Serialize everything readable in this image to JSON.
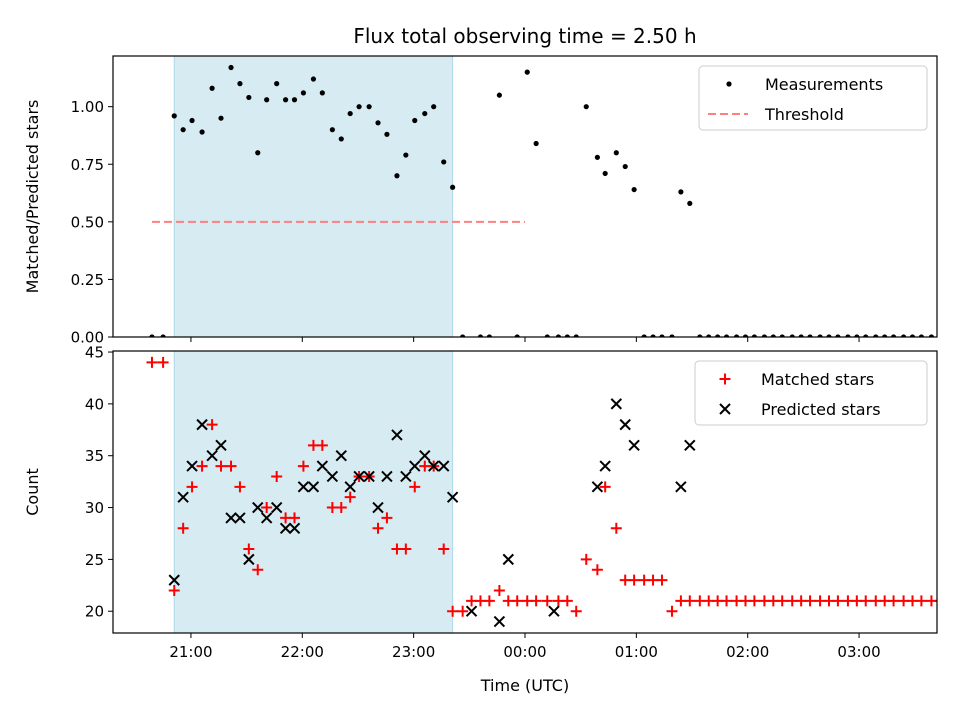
{
  "figure": {
    "title": "Flux total observing time = 2.50 h"
  },
  "chart_data": [
    {
      "type": "scatter",
      "ylabel": "Matched/Predicted stars",
      "xlabel": "",
      "ylim": [
        0,
        1.22
      ],
      "yticks": [
        "0.00",
        "0.25",
        "0.50",
        "0.75",
        "1.00"
      ],
      "ytick_values": [
        0,
        0.25,
        0.5,
        0.75,
        1.0
      ],
      "highlight_span": [
        20.85,
        23.35
      ],
      "highlight_color": "#add8e6",
      "legend_position": "upper right",
      "legend": [
        {
          "label": "Measurements",
          "marker": "dot",
          "color": "#000000"
        },
        {
          "label": "Threshold",
          "marker": "dashed-line",
          "color": "#ff7f7f"
        }
      ],
      "threshold": {
        "value": 0.5,
        "x_range": [
          20.65,
          24.0
        ]
      },
      "series": [
        {
          "name": "Measurements",
          "color": "#000000",
          "points": [
            [
              20.65,
              0
            ],
            [
              20.75,
              0
            ],
            [
              20.85,
              0.96
            ],
            [
              20.93,
              0.9
            ],
            [
              21.01,
              0.94
            ],
            [
              21.1,
              0.89
            ],
            [
              21.19,
              1.08
            ],
            [
              21.27,
              0.95
            ],
            [
              21.36,
              1.17
            ],
            [
              21.44,
              1.1
            ],
            [
              21.52,
              1.04
            ],
            [
              21.6,
              0.8
            ],
            [
              21.68,
              1.03
            ],
            [
              21.77,
              1.1
            ],
            [
              21.85,
              1.03
            ],
            [
              21.93,
              1.03
            ],
            [
              22.01,
              1.06
            ],
            [
              22.1,
              1.12
            ],
            [
              22.18,
              1.06
            ],
            [
              22.27,
              0.9
            ],
            [
              22.35,
              0.86
            ],
            [
              22.43,
              0.97
            ],
            [
              22.51,
              1.0
            ],
            [
              22.6,
              1.0
            ],
            [
              22.68,
              0.93
            ],
            [
              22.76,
              0.88
            ],
            [
              22.85,
              0.7
            ],
            [
              22.93,
              0.79
            ],
            [
              23.01,
              0.94
            ],
            [
              23.1,
              0.97
            ],
            [
              23.18,
              1.0
            ],
            [
              23.27,
              0.76
            ],
            [
              23.35,
              0.65
            ],
            [
              23.44,
              0
            ],
            [
              23.6,
              0
            ],
            [
              23.68,
              0
            ],
            [
              23.77,
              1.05
            ],
            [
              23.93,
              0
            ],
            [
              24.02,
              1.15
            ],
            [
              24.1,
              0.84
            ],
            [
              24.2,
              0
            ],
            [
              24.3,
              0
            ],
            [
              24.38,
              0
            ],
            [
              24.46,
              0
            ],
            [
              24.55,
              1.0
            ],
            [
              24.65,
              0.78
            ],
            [
              24.72,
              0.71
            ],
            [
              24.82,
              0.8
            ],
            [
              24.9,
              0.74
            ],
            [
              24.98,
              0.64
            ],
            [
              25.07,
              0
            ],
            [
              25.15,
              0
            ],
            [
              25.23,
              0
            ],
            [
              25.32,
              0
            ],
            [
              25.4,
              0.63
            ],
            [
              25.48,
              0.58
            ],
            [
              25.57,
              0
            ],
            [
              25.65,
              0
            ],
            [
              25.73,
              0
            ],
            [
              25.81,
              0
            ],
            [
              25.9,
              0
            ],
            [
              25.98,
              0
            ],
            [
              26.06,
              0
            ],
            [
              26.15,
              0
            ],
            [
              26.23,
              0
            ],
            [
              26.31,
              0
            ],
            [
              26.4,
              0
            ],
            [
              26.48,
              0
            ],
            [
              26.56,
              0
            ],
            [
              26.65,
              0
            ],
            [
              26.73,
              0
            ],
            [
              26.81,
              0
            ],
            [
              26.9,
              0
            ],
            [
              26.98,
              0
            ],
            [
              27.06,
              0
            ],
            [
              27.15,
              0
            ],
            [
              27.23,
              0
            ],
            [
              27.31,
              0
            ],
            [
              27.4,
              0
            ],
            [
              27.48,
              0
            ],
            [
              27.56,
              0
            ],
            [
              27.65,
              0
            ],
            [
              27.73,
              0
            ],
            [
              27.81,
              0
            ]
          ]
        }
      ]
    },
    {
      "type": "scatter",
      "ylabel": "Count",
      "xlabel": "Time (UTC)",
      "ylim": [
        17.9,
        45.1
      ],
      "yticks": [
        "20",
        "25",
        "30",
        "35",
        "40",
        "45"
      ],
      "ytick_values": [
        20,
        25,
        30,
        35,
        40,
        45
      ],
      "xlim": [
        20.3,
        27.7
      ],
      "xticks": [
        "21:00",
        "22:00",
        "23:00",
        "00:00",
        "01:00",
        "02:00",
        "03:00"
      ],
      "xtick_values": [
        21,
        22,
        23,
        24,
        25,
        26,
        27
      ],
      "highlight_span": [
        20.85,
        23.35
      ],
      "highlight_color": "#add8e6",
      "legend_position": "upper right",
      "legend": [
        {
          "label": "Matched stars",
          "marker": "plus",
          "color": "#ff0000"
        },
        {
          "label": "Predicted stars",
          "marker": "x",
          "color": "#000000"
        }
      ],
      "series": [
        {
          "name": "Matched stars",
          "marker": "plus",
          "color": "#ff0000",
          "points": [
            [
              20.65,
              44
            ],
            [
              20.75,
              44
            ],
            [
              20.85,
              22
            ],
            [
              20.93,
              28
            ],
            [
              21.01,
              32
            ],
            [
              21.1,
              34
            ],
            [
              21.19,
              38
            ],
            [
              21.27,
              34
            ],
            [
              21.36,
              34
            ],
            [
              21.44,
              32
            ],
            [
              21.52,
              26
            ],
            [
              21.6,
              24
            ],
            [
              21.68,
              30
            ],
            [
              21.77,
              33
            ],
            [
              21.85,
              29
            ],
            [
              21.93,
              29
            ],
            [
              22.01,
              34
            ],
            [
              22.1,
              36
            ],
            [
              22.18,
              36
            ],
            [
              22.27,
              30
            ],
            [
              22.35,
              30
            ],
            [
              22.43,
              31
            ],
            [
              22.51,
              33
            ],
            [
              22.6,
              33
            ],
            [
              22.68,
              28
            ],
            [
              22.76,
              29
            ],
            [
              22.85,
              26
            ],
            [
              22.93,
              26
            ],
            [
              23.01,
              32
            ],
            [
              23.1,
              34
            ],
            [
              23.18,
              34
            ],
            [
              23.27,
              26
            ],
            [
              23.35,
              20
            ],
            [
              23.44,
              20
            ],
            [
              23.52,
              21
            ],
            [
              23.6,
              21
            ],
            [
              23.68,
              21
            ],
            [
              23.77,
              22
            ],
            [
              23.85,
              21
            ],
            [
              23.93,
              21
            ],
            [
              24.02,
              21
            ],
            [
              24.1,
              21
            ],
            [
              24.2,
              21
            ],
            [
              24.3,
              21
            ],
            [
              24.38,
              21
            ],
            [
              24.46,
              20
            ],
            [
              24.55,
              25
            ],
            [
              24.65,
              24
            ],
            [
              24.72,
              32
            ],
            [
              24.82,
              28
            ],
            [
              24.9,
              23
            ],
            [
              24.98,
              23
            ],
            [
              25.07,
              23
            ],
            [
              25.15,
              23
            ],
            [
              25.23,
              23
            ],
            [
              25.32,
              20
            ],
            [
              25.4,
              21
            ],
            [
              25.48,
              21
            ],
            [
              25.57,
              21
            ],
            [
              25.65,
              21
            ],
            [
              25.73,
              21
            ],
            [
              25.81,
              21
            ],
            [
              25.9,
              21
            ],
            [
              25.98,
              21
            ],
            [
              26.06,
              21
            ],
            [
              26.15,
              21
            ],
            [
              26.23,
              21
            ],
            [
              26.31,
              21
            ],
            [
              26.4,
              21
            ],
            [
              26.48,
              21
            ],
            [
              26.56,
              21
            ],
            [
              26.65,
              21
            ],
            [
              26.73,
              21
            ],
            [
              26.81,
              21
            ],
            [
              26.9,
              21
            ],
            [
              26.98,
              21
            ],
            [
              27.06,
              21
            ],
            [
              27.15,
              21
            ],
            [
              27.23,
              21
            ],
            [
              27.31,
              21
            ],
            [
              27.4,
              21
            ],
            [
              27.48,
              21
            ],
            [
              27.56,
              21
            ],
            [
              27.65,
              21
            ],
            [
              27.73,
              21
            ],
            [
              27.81,
              21
            ]
          ]
        },
        {
          "name": "Predicted stars",
          "marker": "x",
          "color": "#000000",
          "points": [
            [
              20.85,
              23
            ],
            [
              20.93,
              31
            ],
            [
              21.01,
              34
            ],
            [
              21.1,
              38
            ],
            [
              21.19,
              35
            ],
            [
              21.27,
              36
            ],
            [
              21.36,
              29
            ],
            [
              21.44,
              29
            ],
            [
              21.52,
              25
            ],
            [
              21.6,
              30
            ],
            [
              21.68,
              29
            ],
            [
              21.77,
              30
            ],
            [
              21.85,
              28
            ],
            [
              21.93,
              28
            ],
            [
              22.01,
              32
            ],
            [
              22.1,
              32
            ],
            [
              22.18,
              34
            ],
            [
              22.27,
              33
            ],
            [
              22.35,
              35
            ],
            [
              22.43,
              32
            ],
            [
              22.51,
              33
            ],
            [
              22.6,
              33
            ],
            [
              22.68,
              30
            ],
            [
              22.76,
              33
            ],
            [
              22.85,
              37
            ],
            [
              22.93,
              33
            ],
            [
              23.01,
              34
            ],
            [
              23.1,
              35
            ],
            [
              23.18,
              34
            ],
            [
              23.27,
              34
            ],
            [
              23.35,
              31
            ],
            [
              23.52,
              20
            ],
            [
              23.77,
              19
            ],
            [
              23.85,
              25
            ],
            [
              24.26,
              20
            ],
            [
              24.65,
              32
            ],
            [
              24.72,
              34
            ],
            [
              24.82,
              40
            ],
            [
              24.9,
              38
            ],
            [
              24.98,
              36
            ],
            [
              25.4,
              32
            ],
            [
              25.48,
              36
            ]
          ]
        }
      ]
    }
  ]
}
